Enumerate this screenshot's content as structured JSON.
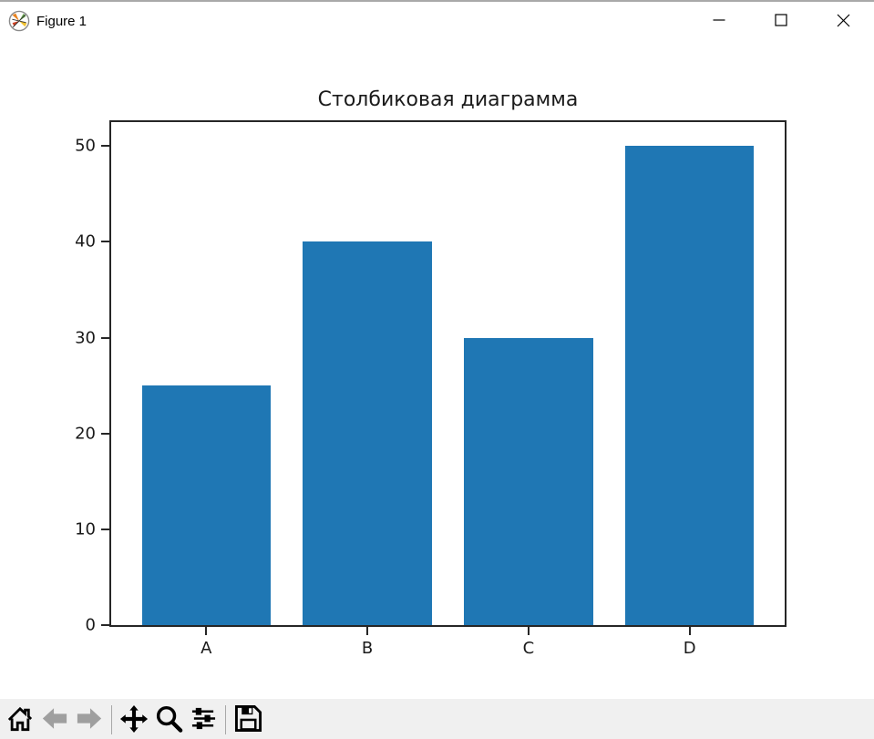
{
  "window": {
    "title": "Figure 1",
    "controls": [
      {
        "name": "minimize"
      },
      {
        "name": "maximize"
      },
      {
        "name": "close"
      }
    ]
  },
  "chart_data": {
    "type": "bar",
    "title": "Столбиковая диаграмма",
    "categories": [
      "A",
      "B",
      "C",
      "D"
    ],
    "values": [
      25,
      40,
      30,
      50
    ],
    "xlabel": "",
    "ylabel": "",
    "yticks": [
      0,
      10,
      20,
      30,
      40,
      50
    ],
    "ylim": [
      0,
      52.5
    ],
    "xlim": [
      -0.59,
      3.59
    ],
    "bar_width": 0.8,
    "bar_color": "#1f77b4",
    "axis_color": "#262626",
    "grid": false,
    "legend": null
  },
  "toolbar": {
    "items": [
      {
        "type": "button",
        "icon": "home",
        "disabled": false
      },
      {
        "type": "button",
        "icon": "back",
        "disabled": true
      },
      {
        "type": "button",
        "icon": "forward",
        "disabled": true
      },
      {
        "type": "separator"
      },
      {
        "type": "button",
        "icon": "pan",
        "disabled": false
      },
      {
        "type": "button",
        "icon": "zoom",
        "disabled": false
      },
      {
        "type": "button",
        "icon": "subplots",
        "disabled": false
      },
      {
        "type": "separator"
      },
      {
        "type": "button",
        "icon": "save",
        "disabled": false
      }
    ]
  }
}
